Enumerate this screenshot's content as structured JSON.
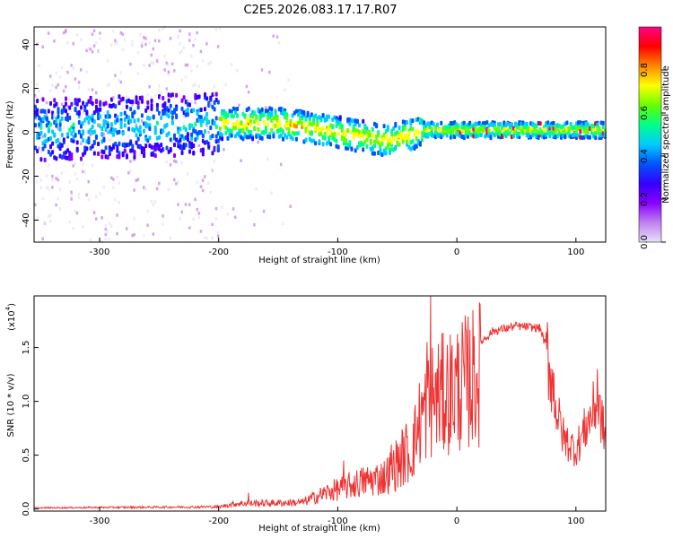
{
  "title": "C2E5.2026.083.17.17.R07",
  "chart_data": [
    {
      "type": "heatmap",
      "xlabel": "Height of straight line (km)",
      "ylabel": "Frequency (Hz)",
      "xlim": [
        -355,
        125
      ],
      "ylim": [
        -50,
        48
      ],
      "xticks": [
        -300,
        -200,
        -100,
        0,
        100
      ],
      "yticks": [
        -40,
        -20,
        0,
        20,
        40
      ],
      "colorbar": {
        "label": "Normalized spectral amplitude",
        "range": [
          0,
          1
        ],
        "ticks": [
          "0.0",
          "0.2",
          "0.4",
          "0.6",
          "0.8"
        ]
      },
      "center_line": [
        {
          "x": -355,
          "y": 1
        },
        {
          "x": -200,
          "y": 4
        },
        {
          "x": -150,
          "y": 4
        },
        {
          "x": -100,
          "y": 0
        },
        {
          "x": -60,
          "y": -4
        },
        {
          "x": -40,
          "y": -1
        },
        {
          "x": -30,
          "y": 1
        },
        {
          "x": 0,
          "y": 1
        },
        {
          "x": 125,
          "y": 1
        }
      ]
    },
    {
      "type": "line",
      "xlabel": "Height of straight line (km)",
      "ylabel": "SNR (10 * v/v)",
      "scale_label": "(x10",
      "scale_exp": "4",
      "scale_close": ")",
      "xlim": [
        -355,
        125
      ],
      "ylim": [
        -0.02,
        1.98
      ],
      "xticks": [
        -300,
        -200,
        -100,
        0,
        100
      ],
      "yticks": [
        "0.0",
        "0.5",
        "1.0",
        "1.5"
      ],
      "series": [
        {
          "name": "SNR",
          "color": "#ee3333",
          "envelope": [
            {
              "x": -355,
              "y": 0.01
            },
            {
              "x": -200,
              "y": 0.02
            },
            {
              "x": -185,
              "y": 0.05
            },
            {
              "x": -130,
              "y": 0.06
            },
            {
              "x": -110,
              "y": 0.15
            },
            {
              "x": -80,
              "y": 0.25
            },
            {
              "x": -60,
              "y": 0.3
            },
            {
              "x": -40,
              "y": 0.55
            },
            {
              "x": -30,
              "y": 1.05
            },
            {
              "x": -20,
              "y": 1.25
            },
            {
              "x": -10,
              "y": 1.3
            },
            {
              "x": 10,
              "y": 1.45
            },
            {
              "x": 30,
              "y": 1.65
            },
            {
              "x": 50,
              "y": 1.7
            },
            {
              "x": 70,
              "y": 1.68
            },
            {
              "x": 75,
              "y": 1.5
            },
            {
              "x": 80,
              "y": 1.2
            },
            {
              "x": 85,
              "y": 0.85
            },
            {
              "x": 90,
              "y": 0.65
            },
            {
              "x": 100,
              "y": 0.55
            },
            {
              "x": 110,
              "y": 0.8
            },
            {
              "x": 118,
              "y": 1.0
            },
            {
              "x": 125,
              "y": 0.65
            }
          ],
          "spikes": [
            {
              "x": -22,
              "y": 1.98
            },
            {
              "x": -25,
              "y": 1.55
            },
            {
              "x": -55,
              "y": 0.6
            },
            {
              "x": -95,
              "y": 0.45
            },
            {
              "x": -175,
              "y": 0.15
            },
            {
              "x": 118,
              "y": 1.3
            }
          ]
        }
      ]
    }
  ],
  "colors": {
    "colormap": [
      "#e8e0f8",
      "#c080f0",
      "#8800ff",
      "#3300ff",
      "#0055ff",
      "#00ccff",
      "#00ff88",
      "#66ff00",
      "#ffff00",
      "#ff8800",
      "#ff0000",
      "#ff0088"
    ]
  }
}
